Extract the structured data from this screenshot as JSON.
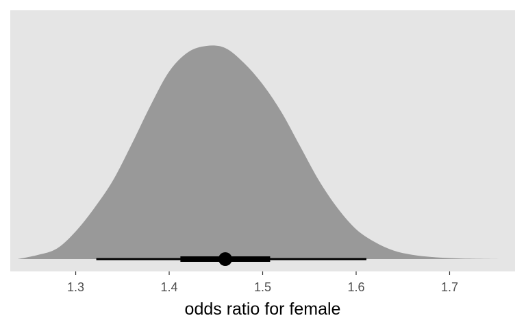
{
  "chart_data": {
    "type": "area",
    "title": "",
    "xlabel": "odds ratio for female",
    "ylabel": "",
    "xlim": [
      1.23,
      1.77
    ],
    "ylim": [
      0,
      1
    ],
    "x_ticks": [
      "1.3",
      "1.4",
      "1.5",
      "1.6",
      "1.7"
    ],
    "grid": false,
    "colors": {
      "panel": "#e5e5e5",
      "density": "#999999",
      "interval": "#000000",
      "tick_label": "#4d4d4d"
    },
    "series": [
      {
        "x": [
          1.238,
          1.26,
          1.28,
          1.3,
          1.32,
          1.34,
          1.36,
          1.38,
          1.4,
          1.42,
          1.44,
          1.46,
          1.48,
          1.5,
          1.52,
          1.54,
          1.56,
          1.58,
          1.6,
          1.62,
          1.64,
          1.66,
          1.68,
          1.7,
          1.72,
          1.755
        ],
        "y": [
          0.0,
          0.02,
          0.05,
          0.13,
          0.24,
          0.37,
          0.54,
          0.72,
          0.88,
          0.97,
          1.0,
          0.99,
          0.92,
          0.82,
          0.69,
          0.53,
          0.37,
          0.24,
          0.14,
          0.08,
          0.04,
          0.02,
          0.01,
          0.005,
          0.002,
          0.0
        ]
      }
    ],
    "point_estimate": 1.46,
    "intervals": [
      {
        "level": "inner",
        "low": 1.412,
        "high": 1.508
      },
      {
        "level": "outer",
        "low": 1.322,
        "high": 1.611
      }
    ]
  }
}
